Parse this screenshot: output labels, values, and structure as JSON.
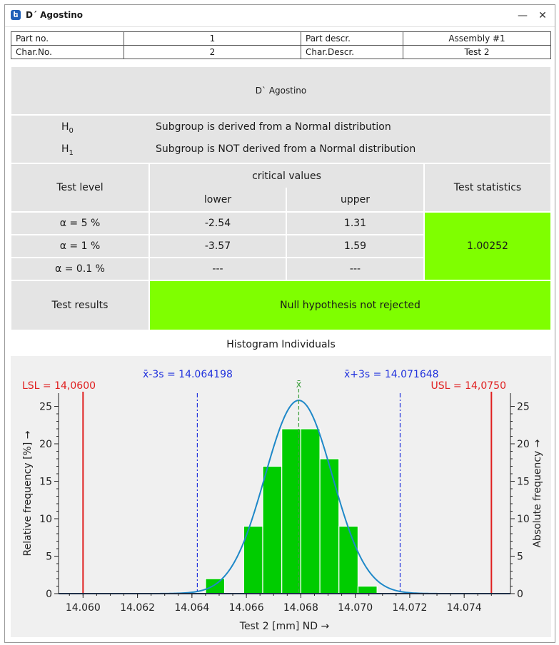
{
  "window": {
    "title": "D´ Agostino",
    "app_icon": "formula-icon",
    "minimize_label": "—",
    "close_label": "✕"
  },
  "info": {
    "part_no_label": "Part no.",
    "part_no_value": "1",
    "part_descr_label": "Part descr.",
    "part_descr_value": "Assembly #1",
    "char_no_label": "Char.No.",
    "char_no_value": "2",
    "char_descr_label": "Char.Descr.",
    "char_descr_value": "Test 2"
  },
  "test": {
    "name": "D` Agostino",
    "h0_label": "H",
    "h0_sub": "0",
    "h0_text": "Subgroup is derived from a Normal distribution",
    "h1_label": "H",
    "h1_sub": "1",
    "h1_text": "Subgroup is NOT derived from a Normal distribution",
    "test_level_header": "Test level",
    "critical_values_header": "critical values",
    "lower_header": "lower",
    "upper_header": "upper",
    "test_statistics_header": "Test statistics",
    "rows": [
      {
        "level": "α = 5 %",
        "lower": "-2.54",
        "upper": "1.31"
      },
      {
        "level": "α = 1 %",
        "lower": "-3.57",
        "upper": "1.59"
      },
      {
        "level": "α = 0.1 %",
        "lower": "---",
        "upper": "---"
      }
    ],
    "test_statistic_value": "1.00252",
    "test_results_label": "Test results",
    "test_results_value": "Null hypothesis not rejected",
    "colors": {
      "pass": "#7fff00",
      "cell": "#e4e4e4"
    }
  },
  "chart_data": {
    "type": "bar",
    "title": "Histogram Individuals",
    "xlabel": "Test 2 [mm]  ND →",
    "ylabel_left": "Relative frequency  [%]  →",
    "ylabel_right": "Absolute frequency →",
    "xlim": [
      14.0591,
      14.0757
    ],
    "ylim": [
      0,
      26
    ],
    "x_ticks": [
      "14.060",
      "14.062",
      "14.064",
      "14.066",
      "14.068",
      "14.070",
      "14.072",
      "14.074"
    ],
    "x_tick_values": [
      14.06,
      14.062,
      14.064,
      14.066,
      14.068,
      14.07,
      14.072,
      14.074
    ],
    "y_ticks_left": [
      "0",
      "5",
      "10",
      "15",
      "20",
      "25"
    ],
    "y_ticks_right": [
      "0",
      "5",
      "10",
      "15",
      "20",
      "25"
    ],
    "bins": [
      {
        "x0": 14.0645,
        "x1": 14.0652,
        "value": 2
      },
      {
        "x0": 14.0659,
        "x1": 14.0666,
        "value": 9
      },
      {
        "x0": 14.0666,
        "x1": 14.0673,
        "value": 17
      },
      {
        "x0": 14.0673,
        "x1": 14.068,
        "value": 22
      },
      {
        "x0": 14.068,
        "x1": 14.0687,
        "value": 22
      },
      {
        "x0": 14.0687,
        "x1": 14.0694,
        "value": 18
      },
      {
        "x0": 14.0694,
        "x1": 14.0701,
        "value": 9
      },
      {
        "x0": 14.0701,
        "x1": 14.0708,
        "value": 1
      }
    ],
    "normal_curve": {
      "mean": 14.067923,
      "sd": 0.0012417,
      "peak": 25.8
    },
    "lsl": {
      "value": 14.06,
      "label": "LSL = 14,0600"
    },
    "usl": {
      "value": 14.075,
      "label": "USL = 14,0750"
    },
    "mean_minus_3s": {
      "value": 14.064198,
      "label": "x̄-3s = 14.064198"
    },
    "mean_plus_3s": {
      "value": 14.071648,
      "label": "x̄+3s = 14.071648"
    },
    "mean_label": "x̄",
    "colors": {
      "bars": "#00cc00",
      "curve": "#1e88c8",
      "limits": "#e02020",
      "sigma": "#2233dd",
      "mean": "#40a040",
      "plot_bg": "#f0f0f0"
    }
  }
}
